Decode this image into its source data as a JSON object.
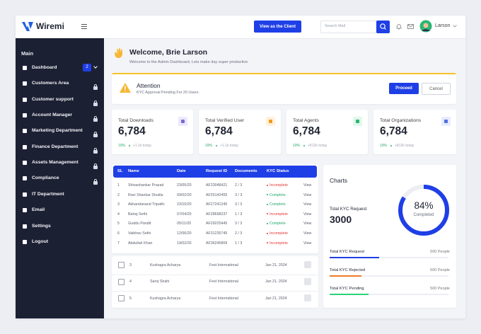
{
  "header": {
    "logo": "Wiremi",
    "client_button": "View as the Client",
    "search_placeholder": "Search Mail",
    "user_name": "Larson"
  },
  "sidebar": {
    "section": "Main",
    "items": [
      {
        "label": "Dashboard",
        "badge": "2"
      },
      {
        "label": "Customers Area",
        "locked": true
      },
      {
        "label": "Customer support",
        "locked": true
      },
      {
        "label": "Account Manager",
        "locked": true
      },
      {
        "label": "Marketing Department",
        "locked": true
      },
      {
        "label": "Finance Department",
        "locked": true
      },
      {
        "label": "Assets Management",
        "locked": true
      },
      {
        "label": "Compliance",
        "locked": true
      },
      {
        "label": "IT Department"
      },
      {
        "label": "Email"
      },
      {
        "label": "Settings"
      },
      {
        "label": "Logout"
      }
    ]
  },
  "welcome": {
    "title": "Welcome, Brie Larson",
    "subtitle": "Welcome to the Admin Dashboard, Lets make day super productive"
  },
  "alert": {
    "title": "Attention",
    "message": "KYC Approval Pending For 20 Users.",
    "primary_action": "Proceed",
    "secondary_action": "Cancel"
  },
  "stats": [
    {
      "title": "Total Downloads",
      "value": "6,784",
      "change": "10%",
      "today": "+1.1k today"
    },
    {
      "title": "Total Verified User",
      "value": "6,784",
      "change": "10%",
      "today": "+1.1k today"
    },
    {
      "title": "Total Agents",
      "value": "6,784",
      "change": "10%",
      "today": "+812k today"
    },
    {
      "title": "Total Organizations",
      "value": "6,784",
      "change": "10%",
      "today": "+812k today"
    }
  ],
  "kyc_table": {
    "columns": [
      "SL",
      "Name",
      "Date",
      "Request ID",
      "Documents",
      "KYC Status"
    ],
    "rows": [
      [
        "1",
        "Shivashankar Prasad",
        "23/05/20",
        "AF23048421",
        "2 / 3",
        "Incomplete",
        "View"
      ],
      [
        "2",
        "Ravi Shankar Shukla",
        "09/02/20",
        "AF25142455",
        "3 / 3",
        "Complete",
        "View"
      ],
      [
        "3",
        "Akhandanand Tripathi",
        "23/10/20",
        "AF27241245",
        "3 / 3",
        "Complete",
        "View"
      ],
      [
        "4",
        "Balraj Sethi",
        "07/04/20",
        "AF28698237",
        "1 / 3",
        "Incomplete",
        "View"
      ],
      [
        "5",
        "Guddu Pandit",
        "05/11/20",
        "AF29225445",
        "3 / 3",
        "Complete",
        "View"
      ],
      [
        "6",
        "Vaibhav Sethi",
        "12/06/20",
        "AF31235745",
        "2 / 3",
        "Incomplete",
        "View"
      ],
      [
        "7",
        "Abdullah Khan",
        "19/02/20",
        "AF36245809",
        "1 / 3",
        "Incomplete",
        "View"
      ]
    ]
  },
  "list": {
    "rows": [
      [
        "3",
        "Kushagra Acharya",
        "Fest International",
        "Jan 21, 2024"
      ],
      [
        "4",
        "Saroj Shahi",
        "Fest International",
        "Jan 21, 2024"
      ],
      [
        "5",
        "Kushagra Acharya",
        "Fest International",
        "Jan 21, 2024"
      ]
    ]
  },
  "charts": {
    "title": "Charts",
    "total_label": "Total KYC Request",
    "total_value": "3000",
    "percent": {
      "value": 84,
      "label": "84%"
    },
    "percent_caption": "Completed",
    "bars": [
      {
        "label": "Total KYC Request",
        "value": "500 People"
      },
      {
        "label": "Total KYC Rejected",
        "value": "500 People"
      },
      {
        "label": "Total KYC Pending",
        "value": "500 People"
      }
    ]
  }
}
